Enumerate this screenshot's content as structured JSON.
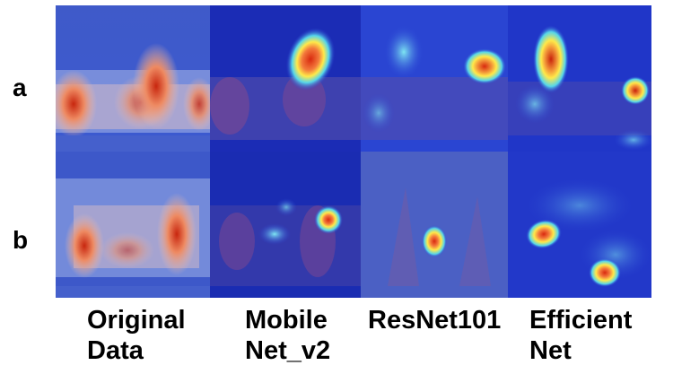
{
  "row_labels": [
    "a",
    "b"
  ],
  "column_labels": [
    "Original\nData",
    "Mobile\nNet_v2",
    "ResNet101",
    "Efficient\nNet"
  ],
  "panels": [
    {
      "row": "a",
      "column": "Original Data",
      "content": "spectrogram-heatmap"
    },
    {
      "row": "a",
      "column": "Mobile Net_v2",
      "content": "attention-heatmap-overlay"
    },
    {
      "row": "a",
      "column": "ResNet101",
      "content": "attention-heatmap-overlay"
    },
    {
      "row": "a",
      "column": "Efficient Net",
      "content": "attention-heatmap-overlay"
    },
    {
      "row": "b",
      "column": "Original Data",
      "content": "spectrogram-heatmap"
    },
    {
      "row": "b",
      "column": "Mobile Net_v2",
      "content": "attention-heatmap-overlay"
    },
    {
      "row": "b",
      "column": "ResNet101",
      "content": "attention-heatmap-overlay"
    },
    {
      "row": "b",
      "column": "Efficient Net",
      "content": "attention-heatmap-overlay"
    }
  ],
  "colors": {
    "background_blue": "#3a56c8",
    "dark_blue": "#1a2fb0",
    "hot_red": "#d81c0c",
    "warm_orange": "#f08a5a",
    "yellow": "#ffe94a",
    "cyan": "#56d6ea"
  }
}
